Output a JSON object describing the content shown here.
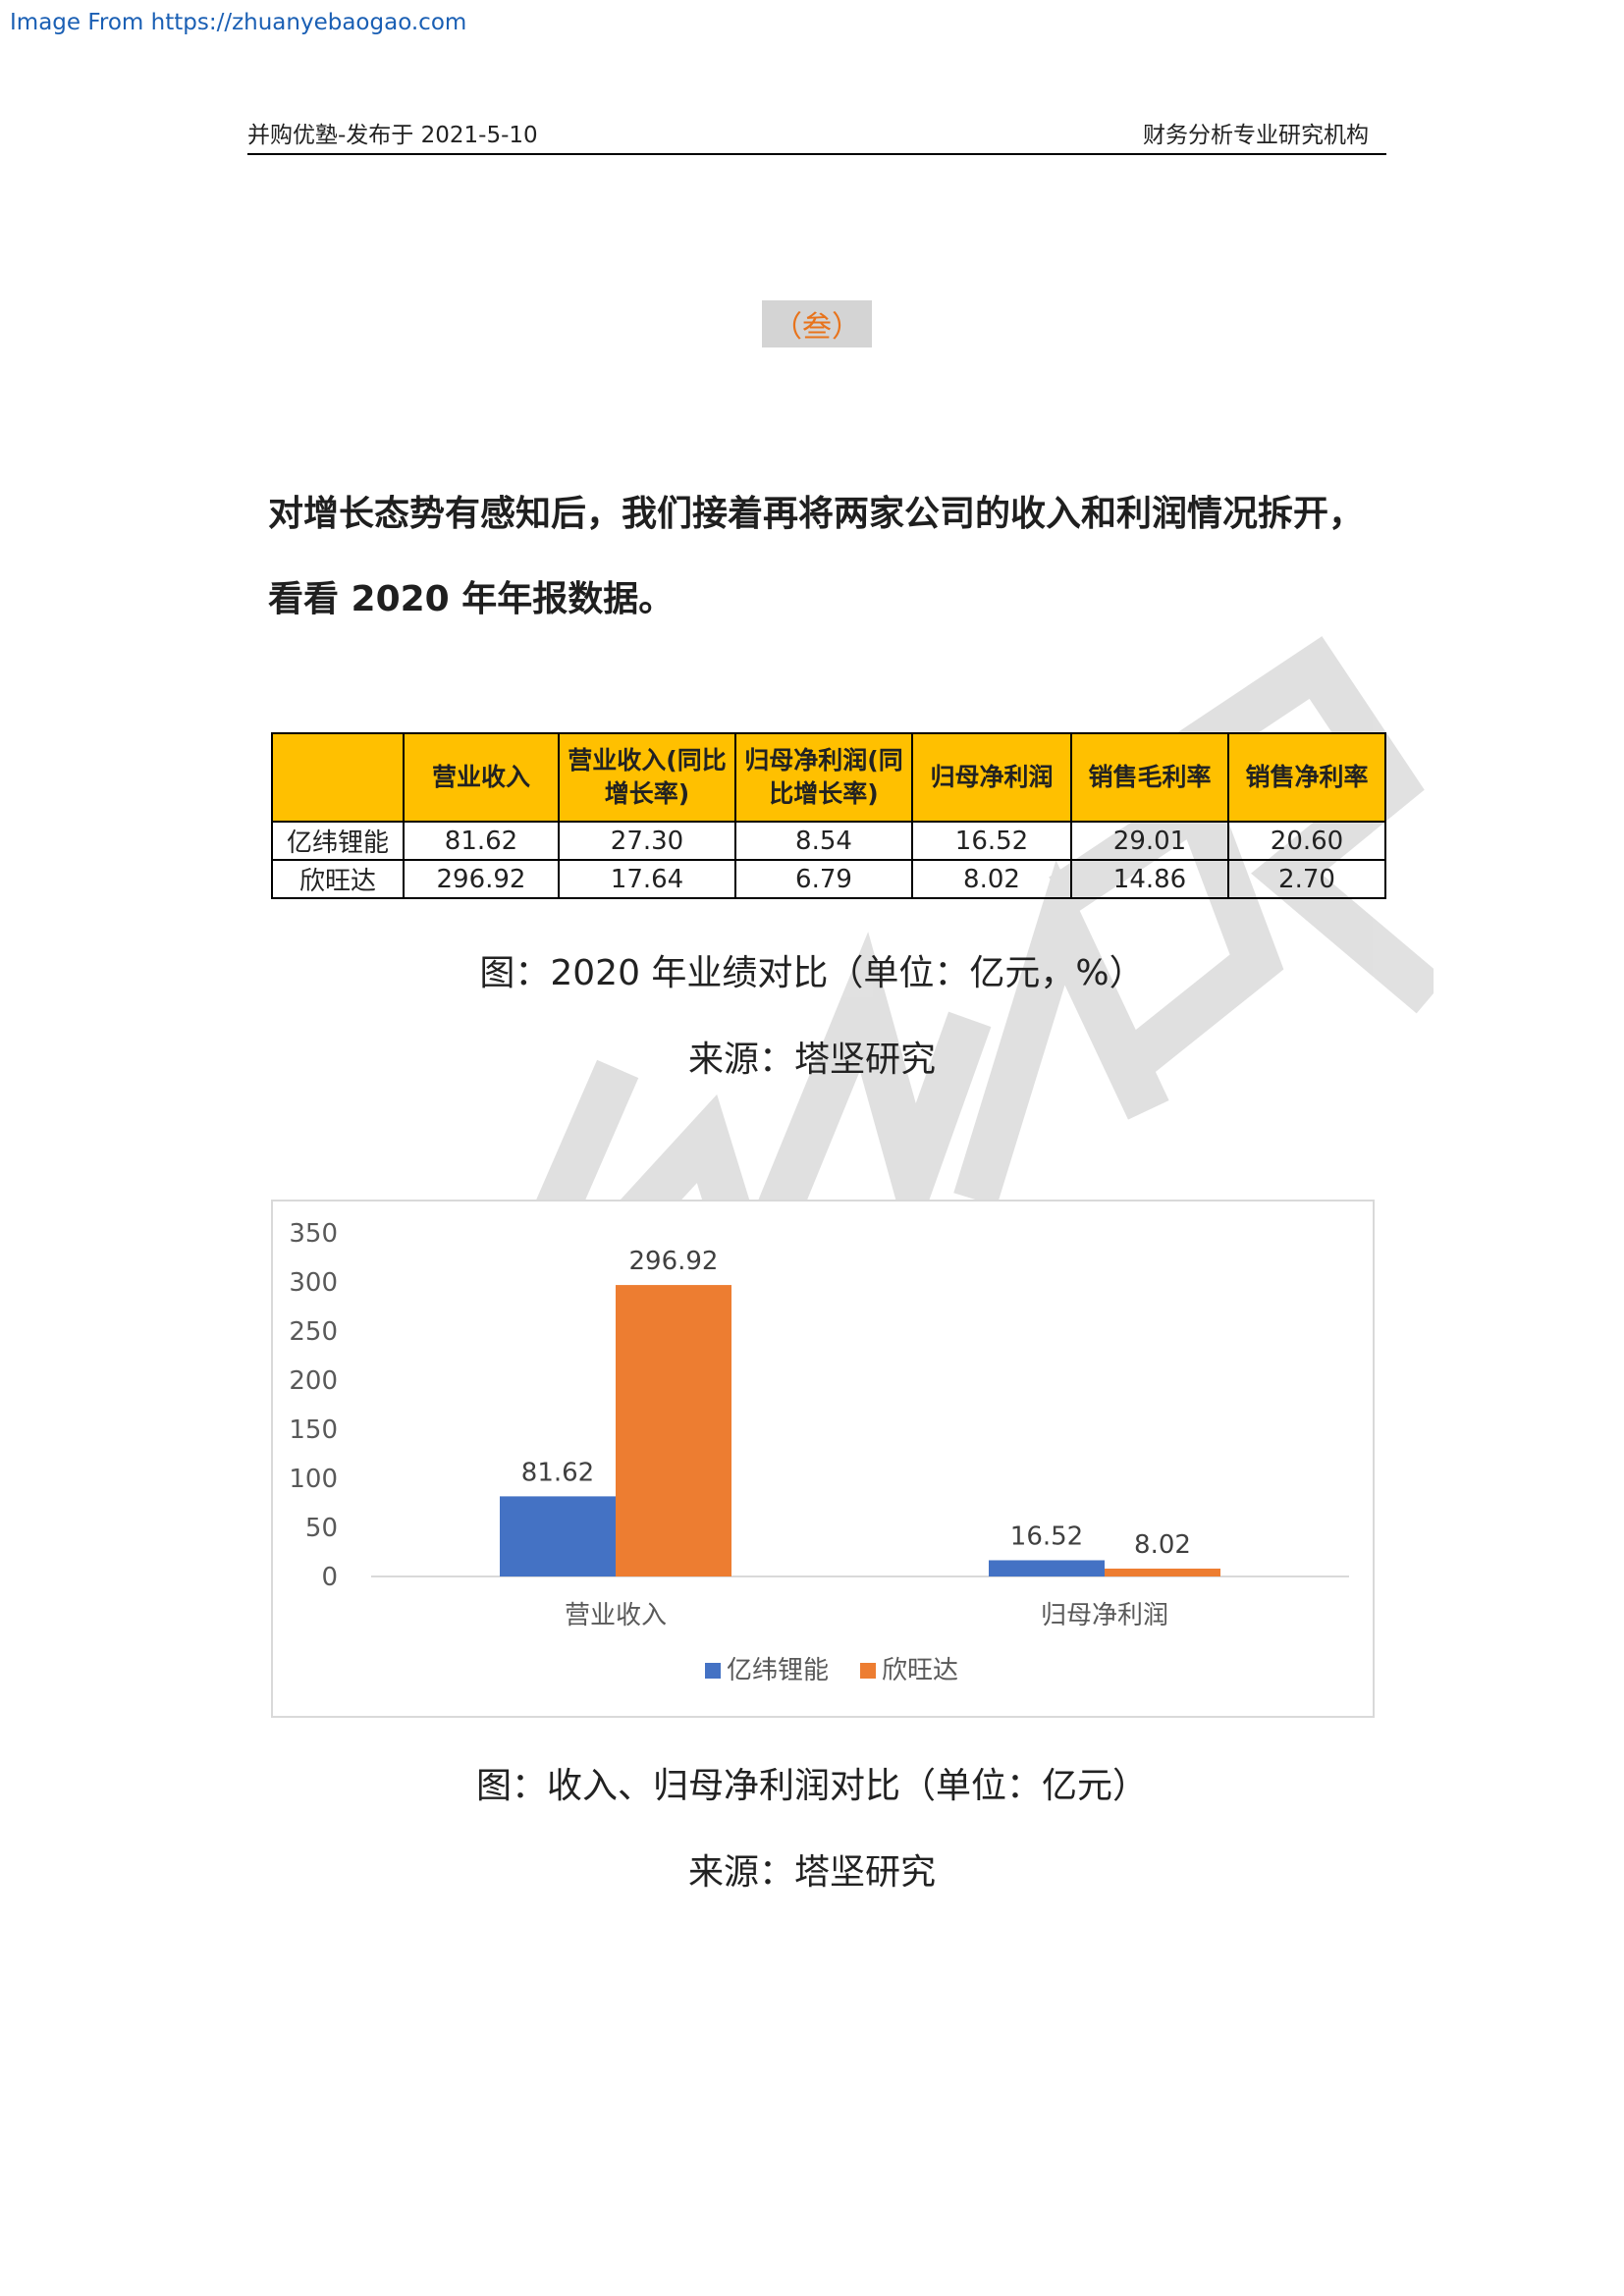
{
  "source_url": "Image From https://zhuanyebaogao.com",
  "header": {
    "left": "并购优塾-发布于 2021-5-10",
    "right": "财务分析专业研究机构"
  },
  "section_marker": "（叁）",
  "lead_text": "对增长态势有感知后，我们接着再将两家公司的收入和利润情况拆开，看看 2020 年年报数据。",
  "table": {
    "headers": [
      "",
      "营业收入",
      "营业收入(同比增长率)",
      "归母净利润(同比增长率)",
      "归母净利润",
      "销售毛利率",
      "销售净利率"
    ],
    "rows": [
      [
        "亿纬锂能",
        "81.62",
        "27.30",
        "8.54",
        "16.52",
        "29.01",
        "20.60"
      ],
      [
        "欣旺达",
        "296.92",
        "17.64",
        "6.79",
        "8.02",
        "14.86",
        "2.70"
      ]
    ]
  },
  "caption1": "图：2020 年业绩对比（单位：亿元，%）",
  "source1": "来源：塔坚研究",
  "chart_data": {
    "type": "bar",
    "categories": [
      "营业收入",
      "归母净利润"
    ],
    "series": [
      {
        "name": "亿纬锂能",
        "values": [
          81.62,
          16.52
        ],
        "color": "#4472c4"
      },
      {
        "name": "欣旺达",
        "values": [
          296.92,
          8.02
        ],
        "color": "#ed7d31"
      }
    ],
    "ylim": [
      0,
      350
    ],
    "yticks": [
      "0",
      "50",
      "100",
      "150",
      "200",
      "250",
      "300",
      "350"
    ],
    "data_labels": [
      [
        "81.62",
        "16.52"
      ],
      [
        "296.92",
        "8.02"
      ]
    ],
    "legend_position": "bottom",
    "grid": false
  },
  "caption2": "图：收入、归母净利润对比（单位：亿元）",
  "source2": "来源：塔坚研究"
}
